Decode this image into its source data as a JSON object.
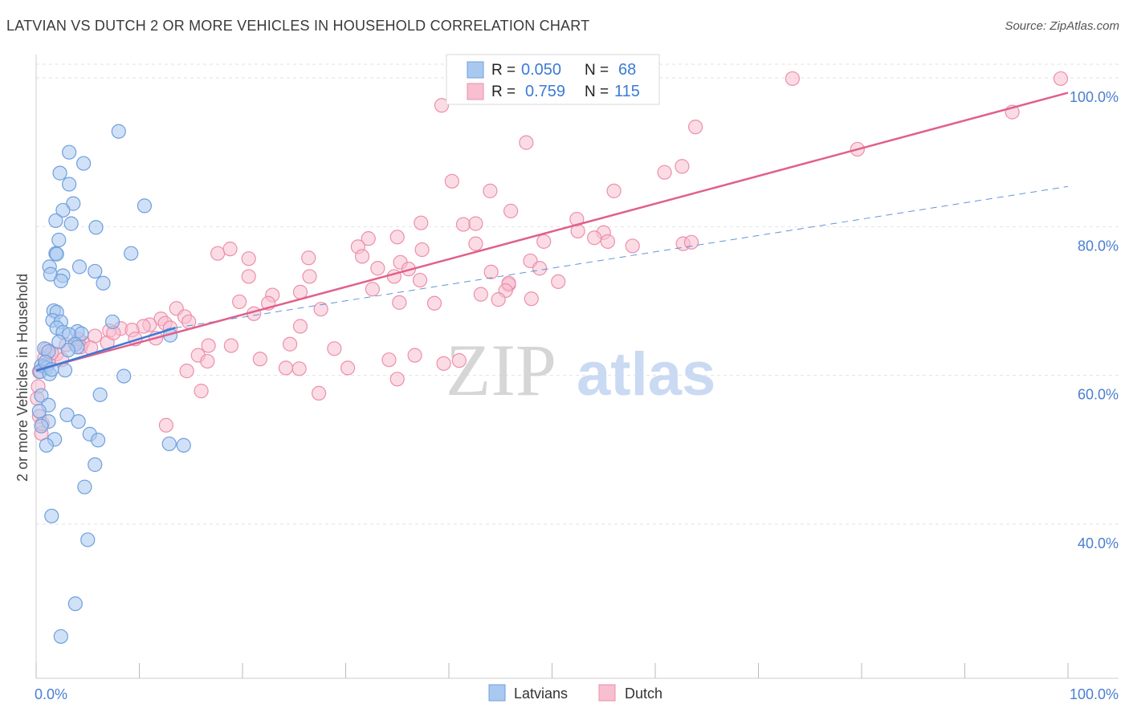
{
  "header": {
    "title": "LATVIAN VS DUTCH 2 OR MORE VEHICLES IN HOUSEHOLD CORRELATION CHART",
    "source": "Source: ZipAtlas.com"
  },
  "watermark": {
    "zip": "ZIP",
    "atlas": "atlas"
  },
  "colors": {
    "latvian_fill": "#a9c8f0",
    "latvian_stroke": "#6f9fdc",
    "latvian_line": "#3a7bd5",
    "dutch_fill": "#f7bfd0",
    "dutch_stroke": "#ec8fab",
    "dutch_line": "#e0608c",
    "grid": "#e2e2e2",
    "tick_text": "#4a7fd0"
  },
  "stats_legend": {
    "latvians": {
      "r_label": "R =",
      "r_value": "0.050",
      "n_label": "N =",
      "n_value": "68"
    },
    "dutch": {
      "r_label": "R =",
      "r_value": "0.759",
      "n_label": "N =",
      "n_value": "115"
    }
  },
  "chart_data": {
    "type": "scatter",
    "title": "LATVIAN VS DUTCH 2 OR MORE VEHICLES IN HOUSEHOLD CORRELATION CHART",
    "xlabel": "",
    "ylabel": "2 or more Vehicles in Household",
    "xlim": [
      0,
      100
    ],
    "ylim": [
      20,
      102
    ],
    "x_tick_labels": [
      {
        "value": 0,
        "label": "0.0%"
      },
      {
        "value": 100,
        "label": "100.0%"
      }
    ],
    "y_tick_labels": [
      {
        "value": 40,
        "label": "40.0%"
      },
      {
        "value": 60,
        "label": "60.0%"
      },
      {
        "value": 80,
        "label": "80.0%"
      },
      {
        "value": 100,
        "label": "100.0%"
      }
    ],
    "x_minor_ticks": [
      0,
      10,
      20,
      30,
      40,
      50,
      60,
      70,
      80,
      90,
      100
    ],
    "legend": [
      "Latvians",
      "Dutch"
    ],
    "series": [
      {
        "name": "Latvians",
        "trend": {
          "x": [
            0,
            13.5
          ],
          "y": [
            60.6,
            66.4
          ],
          "dashed_to": [
            100,
            85.4
          ]
        },
        "points": [
          [
            8.0,
            92.8
          ],
          [
            3.2,
            90.0
          ],
          [
            4.6,
            88.5
          ],
          [
            2.3,
            87.2
          ],
          [
            3.2,
            85.7
          ],
          [
            3.6,
            83.1
          ],
          [
            2.6,
            82.2
          ],
          [
            10.5,
            82.8
          ],
          [
            1.9,
            80.8
          ],
          [
            3.4,
            80.4
          ],
          [
            5.8,
            79.9
          ],
          [
            2.2,
            78.2
          ],
          [
            1.9,
            76.4
          ],
          [
            2.0,
            76.3
          ],
          [
            9.2,
            76.4
          ],
          [
            4.2,
            74.6
          ],
          [
            1.3,
            74.6
          ],
          [
            5.7,
            74.0
          ],
          [
            1.4,
            73.6
          ],
          [
            2.6,
            73.4
          ],
          [
            2.4,
            72.7
          ],
          [
            6.5,
            72.4
          ],
          [
            1.7,
            68.7
          ],
          [
            2.0,
            68.5
          ],
          [
            1.6,
            67.4
          ],
          [
            2.4,
            67.2
          ],
          [
            7.4,
            67.2
          ],
          [
            2.0,
            66.4
          ],
          [
            4.0,
            65.9
          ],
          [
            2.6,
            65.8
          ],
          [
            3.2,
            65.5
          ],
          [
            4.4,
            65.6
          ],
          [
            13.0,
            65.4
          ],
          [
            3.8,
            64.2
          ],
          [
            4.0,
            63.8
          ],
          [
            3.1,
            63.4
          ],
          [
            0.8,
            63.6
          ],
          [
            1.2,
            63.2
          ],
          [
            0.5,
            61.3
          ],
          [
            0.8,
            61.2
          ],
          [
            1.0,
            61.0
          ],
          [
            0.4,
            60.5
          ],
          [
            1.3,
            60.2
          ],
          [
            2.8,
            60.7
          ],
          [
            8.5,
            59.9
          ],
          [
            0.5,
            57.3
          ],
          [
            6.2,
            57.4
          ],
          [
            1.2,
            56.0
          ],
          [
            0.3,
            55.2
          ],
          [
            3.0,
            54.7
          ],
          [
            4.1,
            53.8
          ],
          [
            1.2,
            53.8
          ],
          [
            0.5,
            53.2
          ],
          [
            5.2,
            52.1
          ],
          [
            6.0,
            51.3
          ],
          [
            1.8,
            51.4
          ],
          [
            1.0,
            50.6
          ],
          [
            12.9,
            50.8
          ],
          [
            14.3,
            50.6
          ],
          [
            5.7,
            48.0
          ],
          [
            4.7,
            45.0
          ],
          [
            1.5,
            41.1
          ],
          [
            5.0,
            37.9
          ],
          [
            3.8,
            29.3
          ],
          [
            2.4,
            24.9
          ],
          [
            0.9,
            61.8
          ],
          [
            2.2,
            64.5
          ],
          [
            1.5,
            60.8
          ]
        ]
      },
      {
        "name": "Dutch",
        "trend": {
          "x": [
            0,
            100
          ],
          "y": [
            60.7,
            98.0
          ]
        },
        "points": [
          [
            73.3,
            99.9
          ],
          [
            99.3,
            99.9
          ],
          [
            58.6,
            99.6
          ],
          [
            39.3,
            96.3
          ],
          [
            94.6,
            95.4
          ],
          [
            63.9,
            93.4
          ],
          [
            47.5,
            91.3
          ],
          [
            62.6,
            88.1
          ],
          [
            79.6,
            90.4
          ],
          [
            60.9,
            87.3
          ],
          [
            40.3,
            86.1
          ],
          [
            56.0,
            84.8
          ],
          [
            44.0,
            84.8
          ],
          [
            52.4,
            81.0
          ],
          [
            46.0,
            82.1
          ],
          [
            37.3,
            80.5
          ],
          [
            41.4,
            80.3
          ],
          [
            42.6,
            80.4
          ],
          [
            52.5,
            79.4
          ],
          [
            55.0,
            79.2
          ],
          [
            54.1,
            78.5
          ],
          [
            55.4,
            78.0
          ],
          [
            49.2,
            78.0
          ],
          [
            32.2,
            78.4
          ],
          [
            35.0,
            78.6
          ],
          [
            31.2,
            77.3
          ],
          [
            62.7,
            77.7
          ],
          [
            57.8,
            77.4
          ],
          [
            63.5,
            77.9
          ],
          [
            42.6,
            77.7
          ],
          [
            17.6,
            76.4
          ],
          [
            18.8,
            77.0
          ],
          [
            20.6,
            75.7
          ],
          [
            26.4,
            75.8
          ],
          [
            37.4,
            76.9
          ],
          [
            31.6,
            76.0
          ],
          [
            35.3,
            75.2
          ],
          [
            36.1,
            74.3
          ],
          [
            33.1,
            74.4
          ],
          [
            47.9,
            75.4
          ],
          [
            48.8,
            74.4
          ],
          [
            34.7,
            73.3
          ],
          [
            20.6,
            73.3
          ],
          [
            26.5,
            73.3
          ],
          [
            44.1,
            73.9
          ],
          [
            37.2,
            72.8
          ],
          [
            45.8,
            72.2
          ],
          [
            50.6,
            72.6
          ],
          [
            45.8,
            72.4
          ],
          [
            45.5,
            71.4
          ],
          [
            32.6,
            71.6
          ],
          [
            19.7,
            69.9
          ],
          [
            22.9,
            70.8
          ],
          [
            43.1,
            70.9
          ],
          [
            48.0,
            70.3
          ],
          [
            44.8,
            70.2
          ],
          [
            35.2,
            69.8
          ],
          [
            38.6,
            69.7
          ],
          [
            25.6,
            71.2
          ],
          [
            22.5,
            69.7
          ],
          [
            21.1,
            68.3
          ],
          [
            27.6,
            68.9
          ],
          [
            25.6,
            66.6
          ],
          [
            13.6,
            69.0
          ],
          [
            14.4,
            67.9
          ],
          [
            14.8,
            67.2
          ],
          [
            12.1,
            67.6
          ],
          [
            12.5,
            67.0
          ],
          [
            13.0,
            66.4
          ],
          [
            11.0,
            66.8
          ],
          [
            10.4,
            66.6
          ],
          [
            8.2,
            66.3
          ],
          [
            9.3,
            66.1
          ],
          [
            7.1,
            66.0
          ],
          [
            5.7,
            65.3
          ],
          [
            9.6,
            64.9
          ],
          [
            11.6,
            65.0
          ],
          [
            6.9,
            64.4
          ],
          [
            4.5,
            64.4
          ],
          [
            4.1,
            64.9
          ],
          [
            4.3,
            63.8
          ],
          [
            5.3,
            63.7
          ],
          [
            2.9,
            64.1
          ],
          [
            1.0,
            63.5
          ],
          [
            2.0,
            62.9
          ],
          [
            0.8,
            62.3
          ],
          [
            1.2,
            61.6
          ],
          [
            16.7,
            64.0
          ],
          [
            18.9,
            64.0
          ],
          [
            21.7,
            62.2
          ],
          [
            15.7,
            62.7
          ],
          [
            16.6,
            61.9
          ],
          [
            14.6,
            60.6
          ],
          [
            16.0,
            57.9
          ],
          [
            12.6,
            53.3
          ],
          [
            24.6,
            64.2
          ],
          [
            24.2,
            61.0
          ],
          [
            28.9,
            63.6
          ],
          [
            25.5,
            60.9
          ],
          [
            30.2,
            61.0
          ],
          [
            35.0,
            59.5
          ],
          [
            34.2,
            62.1
          ],
          [
            36.7,
            62.7
          ],
          [
            41.0,
            62.0
          ],
          [
            39.5,
            61.6
          ],
          [
            27.4,
            57.6
          ],
          [
            0.3,
            60.5
          ],
          [
            0.2,
            58.5
          ],
          [
            0.1,
            56.9
          ],
          [
            0.3,
            54.5
          ],
          [
            0.5,
            52.2
          ],
          [
            0.6,
            53.5
          ],
          [
            2.5,
            62.1
          ],
          [
            1.5,
            63.0
          ],
          [
            7.5,
            65.7
          ]
        ]
      }
    ]
  },
  "bottom_legend": {
    "latvians": "Latvians",
    "dutch": "Dutch"
  }
}
